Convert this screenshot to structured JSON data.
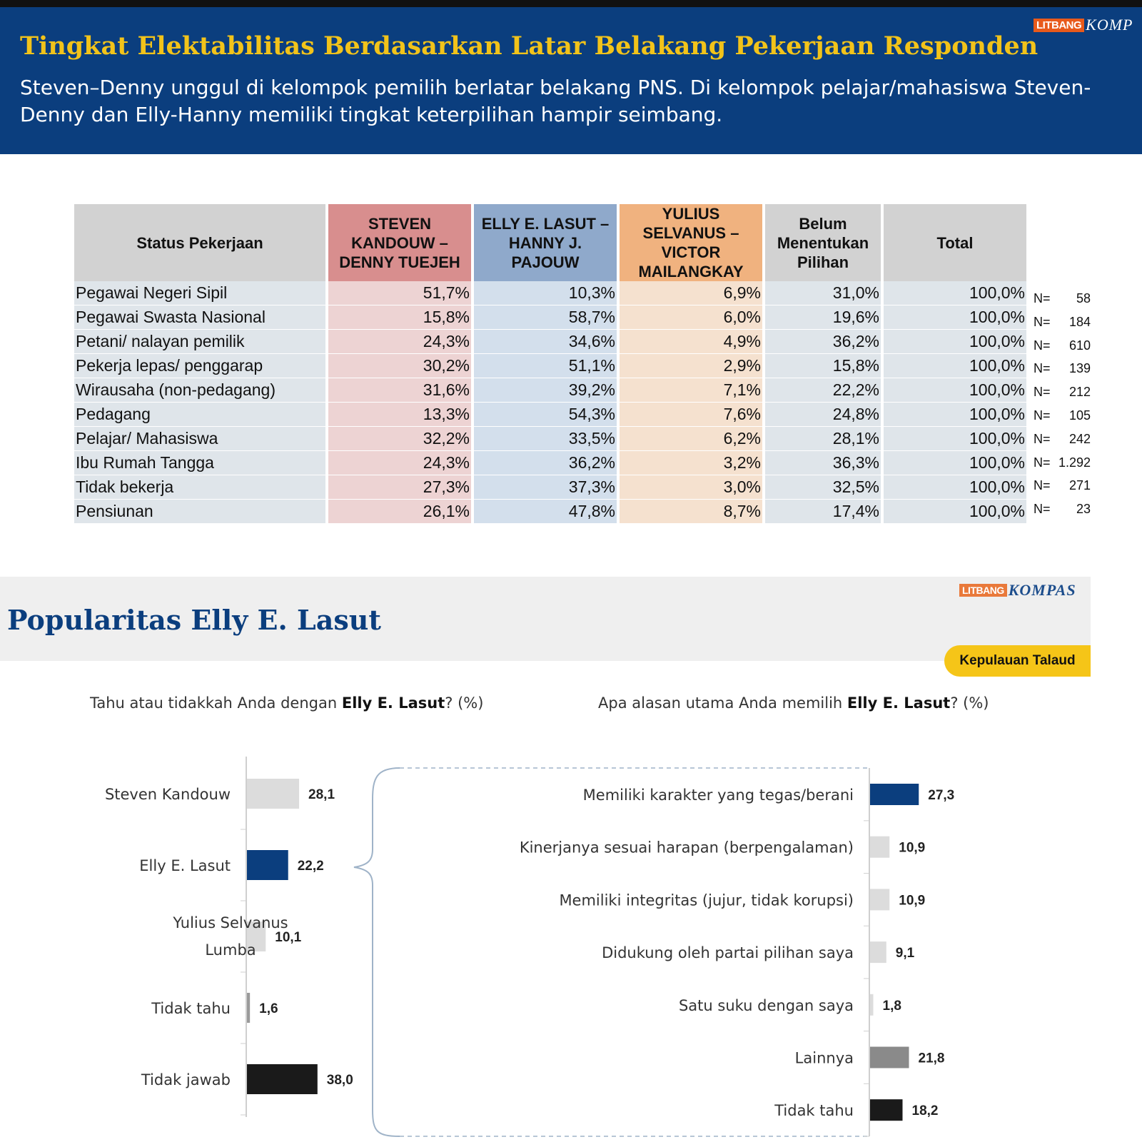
{
  "header": {
    "logo_lit": "LITBANG",
    "logo_kom": "KOMP",
    "title": "Tingkat Elektabilitas Berdasarkan Latar Belakang Pekerjaan Responden",
    "subtitle": "Steven–Denny unggul di kelompok pemilih berlatar belakang PNS. Di kelompok pelajar/mahasiswa Steven-Denny dan Elly-Hanny memiliki tingkat keterpilihan hampir seimbang."
  },
  "table": {
    "headers": [
      "Status Pekerjaan",
      "STEVEN KANDOUW – DENNY TUEJEH",
      "ELLY E. LASUT – HANNY J. PAJOUW",
      "YULIUS SELVANUS – VICTOR MAILANGKAY",
      "Belum Menentukan Pilihan",
      "Total"
    ],
    "rows": [
      {
        "label": "Pegawai Negeri Sipil",
        "v": [
          "51,7%",
          "10,3%",
          "6,9%",
          "31,0%",
          "100,0%"
        ],
        "n_label": "N=",
        "n": "58"
      },
      {
        "label": "Pegawai Swasta Nasional",
        "v": [
          "15,8%",
          "58,7%",
          "6,0%",
          "19,6%",
          "100,0%"
        ],
        "n_label": "N=",
        "n": "184"
      },
      {
        "label": "Petani/ nalayan pemilik",
        "v": [
          "24,3%",
          "34,6%",
          "4,9%",
          "36,2%",
          "100,0%"
        ],
        "n_label": "N=",
        "n": "610"
      },
      {
        "label": "Pekerja lepas/ penggarap",
        "v": [
          "30,2%",
          "51,1%",
          "2,9%",
          "15,8%",
          "100,0%"
        ],
        "n_label": "N=",
        "n": "139"
      },
      {
        "label": "Wirausaha (non-pedagang)",
        "v": [
          "31,6%",
          "39,2%",
          "7,1%",
          "22,2%",
          "100,0%"
        ],
        "n_label": "N=",
        "n": "212"
      },
      {
        "label": "Pedagang",
        "v": [
          "13,3%",
          "54,3%",
          "7,6%",
          "24,8%",
          "100,0%"
        ],
        "n_label": "N=",
        "n": "105"
      },
      {
        "label": "Pelajar/ Mahasiswa",
        "v": [
          "32,2%",
          "33,5%",
          "6,2%",
          "28,1%",
          "100,0%"
        ],
        "n_label": "N=",
        "n": "242"
      },
      {
        "label": "Ibu Rumah Tangga",
        "v": [
          "24,3%",
          "36,2%",
          "3,2%",
          "36,3%",
          "100,0%"
        ],
        "n_label": "N=",
        "n": "1.292"
      },
      {
        "label": "Tidak bekerja",
        "v": [
          "27,3%",
          "37,3%",
          "3,0%",
          "32,5%",
          "100,0%"
        ],
        "n_label": "N=",
        "n": "271"
      },
      {
        "label": "Pensiunan",
        "v": [
          "26,1%",
          "47,8%",
          "8,7%",
          "17,4%",
          "100,0%"
        ],
        "n_label": "N=",
        "n": "23"
      }
    ]
  },
  "section2": {
    "logo_lit": "LITBANG",
    "logo_kom": "KOMPAS",
    "title": "Popularitas Elly E. Lasut",
    "region": "Kepulauan Talaud",
    "q1_pre": "Tahu atau tidakkah Anda dengan ",
    "q1_bold": "Elly E. Lasut",
    "q1_post": "? (%)",
    "q2_pre": "Apa alasan utama Anda memilih ",
    "q2_bold": "Elly E. Lasut",
    "q2_post": "? (%)"
  },
  "chart_data": [
    {
      "type": "bar",
      "orientation": "horizontal",
      "categories": [
        "Steven Kandouw",
        "Elly E. Lasut",
        "Yulius Selvanus Lumba",
        "Tidak tahu",
        "Tidak jawab"
      ],
      "values": [
        28.1,
        22.2,
        10.1,
        1.6,
        38.0
      ],
      "value_labels": [
        "28,1",
        "22,2",
        "10,1",
        "1,6",
        "38,0"
      ],
      "colors": [
        "#dcdcdc",
        "#0b3e7e",
        "#dcdcdc",
        "#9a9a9a",
        "#1a1a1a"
      ]
    },
    {
      "type": "bar",
      "orientation": "horizontal",
      "categories": [
        "Memiliki karakter yang tegas/berani",
        "Kinerjanya sesuai harapan (berpengalaman)",
        "Memiliki integritas (jujur, tidak korupsi)",
        "Didukung oleh partai pilihan saya",
        "Satu suku dengan saya",
        "Lainnya",
        "Tidak tahu"
      ],
      "values": [
        27.3,
        10.9,
        10.9,
        9.1,
        1.8,
        21.8,
        18.2
      ],
      "value_labels": [
        "27,3",
        "10,9",
        "10,9",
        "9,1",
        "1,8",
        "21,8",
        "18,2"
      ],
      "colors": [
        "#0b3e7e",
        "#dcdcdc",
        "#dcdcdc",
        "#dcdcdc",
        "#dcdcdc",
        "#8a8a8a",
        "#1a1a1a"
      ]
    }
  ]
}
